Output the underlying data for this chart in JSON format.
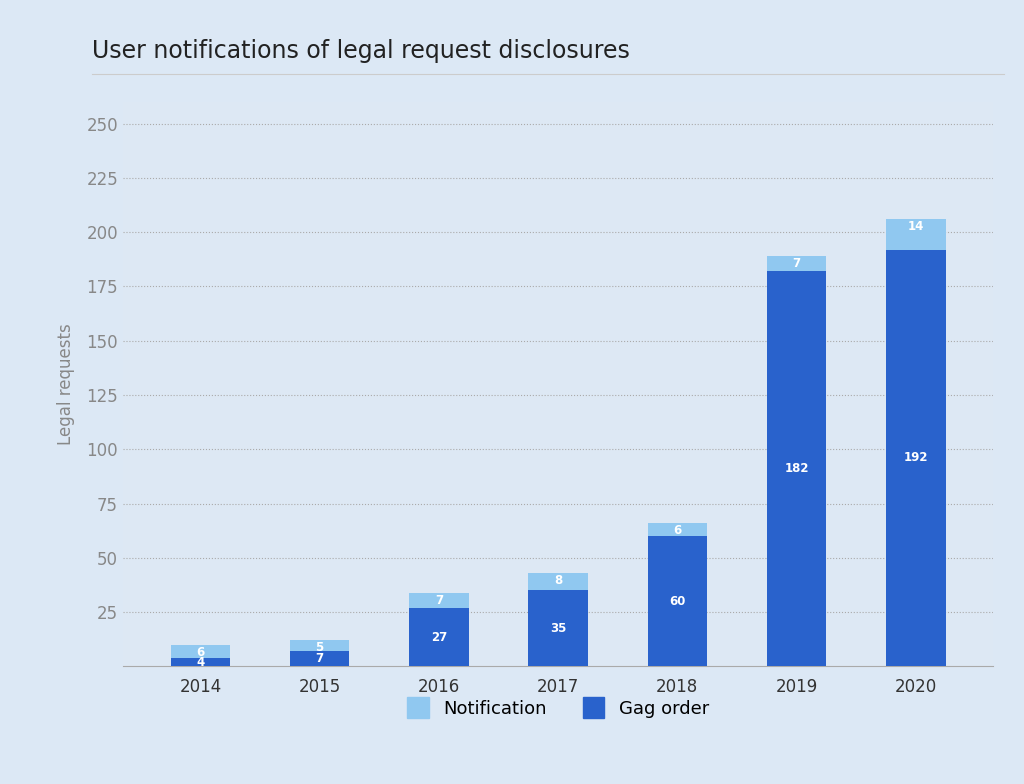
{
  "title": "User notifications of legal request disclosures",
  "years": [
    "2014",
    "2015",
    "2016",
    "2017",
    "2018",
    "2019",
    "2020"
  ],
  "gag_orders": [
    4,
    7,
    27,
    35,
    60,
    182,
    192
  ],
  "notifications": [
    6,
    5,
    7,
    8,
    6,
    7,
    14
  ],
  "gag_color": "#2962cc",
  "notification_color": "#90c8f0",
  "outer_background": "#dce8f5",
  "plot_background": "#dde8f4",
  "ylabel": "Legal requests",
  "ylim": [
    0,
    260
  ],
  "yticks": [
    25,
    50,
    75,
    100,
    125,
    150,
    175,
    200,
    225,
    250
  ],
  "title_fontsize": 17,
  "label_fontsize": 12,
  "tick_fontsize": 12,
  "legend_labels": [
    "Notification",
    "Gag order"
  ],
  "bar_width": 0.5
}
